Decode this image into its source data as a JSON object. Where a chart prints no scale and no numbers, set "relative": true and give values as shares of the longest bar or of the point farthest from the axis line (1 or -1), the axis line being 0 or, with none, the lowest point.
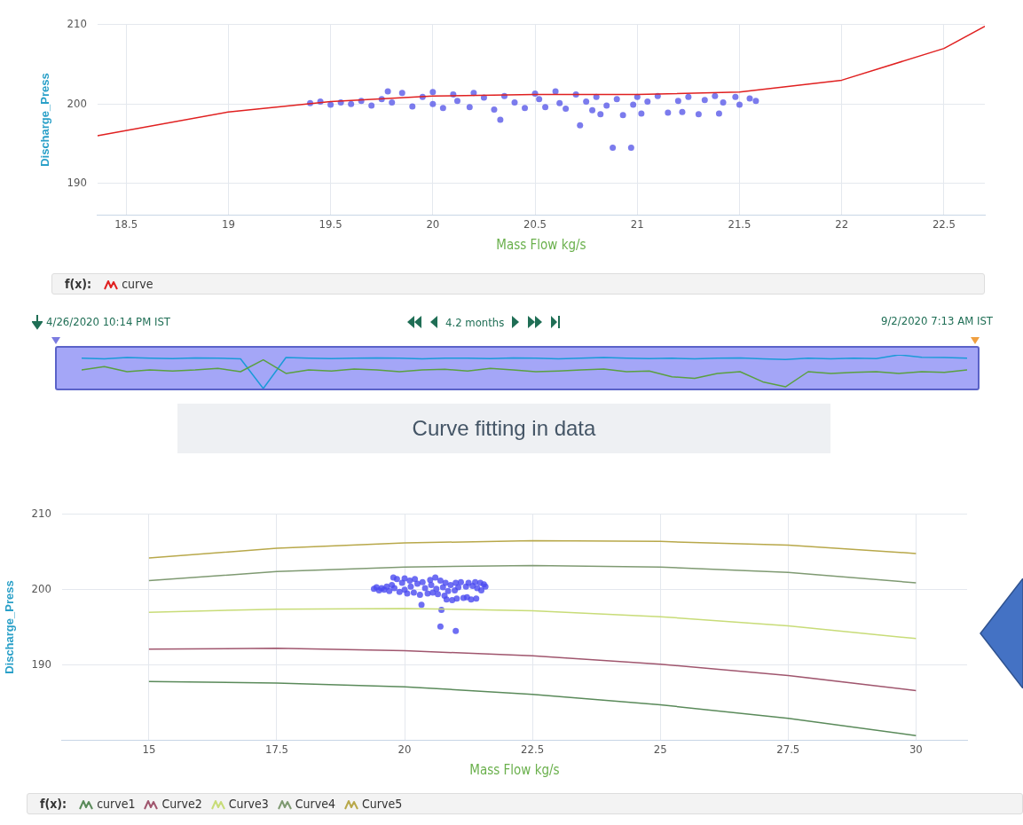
{
  "chart_data": [
    {
      "type": "scatter",
      "xlabel": "Mass Flow kg/s",
      "ylabel": "Discharge_Press",
      "xlim": [
        18.36,
        22.7
      ],
      "ylim": [
        186,
        210
      ],
      "xticks": [
        18.5,
        19,
        19.5,
        20,
        20.5,
        21,
        21.5,
        22,
        22.5
      ],
      "yticks": [
        190,
        200,
        210
      ],
      "grid": true,
      "legend": "bottom",
      "legend_title": "f(x):",
      "series": [
        {
          "type": "scatter",
          "color": "#5a5ae8",
          "marker": "circle",
          "x": [
            19.4,
            19.45,
            19.5,
            19.55,
            19.6,
            19.65,
            19.7,
            19.75,
            19.78,
            19.8,
            19.85,
            19.9,
            19.95,
            20.0,
            20.0,
            20.05,
            20.1,
            20.12,
            20.18,
            20.2,
            20.25,
            20.3,
            20.33,
            20.35,
            20.4,
            20.45,
            20.5,
            20.52,
            20.55,
            20.6,
            20.62,
            20.65,
            20.7,
            20.72,
            20.75,
            20.78,
            20.8,
            20.82,
            20.85,
            20.88,
            20.9,
            20.93,
            20.97,
            20.98,
            21.0,
            21.02,
            21.05,
            21.1,
            21.15,
            21.2,
            21.22,
            21.25,
            21.3,
            21.33,
            21.38,
            21.4,
            21.42,
            21.48,
            21.5,
            21.55,
            21.58
          ],
          "values": [
            200.1,
            200.3,
            199.9,
            200.2,
            200.0,
            200.4,
            199.8,
            200.6,
            201.6,
            200.2,
            201.4,
            199.7,
            200.9,
            201.5,
            200.0,
            199.5,
            201.2,
            200.4,
            199.6,
            201.4,
            200.8,
            199.3,
            198.0,
            201.0,
            200.2,
            199.5,
            201.3,
            200.6,
            199.6,
            201.6,
            200.1,
            199.4,
            201.2,
            197.3,
            200.3,
            199.2,
            200.9,
            198.7,
            199.8,
            194.5,
            200.6,
            198.6,
            194.5,
            199.9,
            200.9,
            198.8,
            200.3,
            201.0,
            198.9,
            200.4,
            199.0,
            200.9,
            198.7,
            200.5,
            201.0,
            198.8,
            200.2,
            200.9,
            199.9,
            200.7,
            200.4
          ]
        },
        {
          "type": "line",
          "name": "curve",
          "color": "#e02020",
          "marker": "none",
          "x": [
            18.36,
            19,
            19.5,
            20,
            20.5,
            21,
            21.5,
            22,
            22.5,
            22.7
          ],
          "values": [
            196,
            199,
            200.3,
            201,
            201.2,
            201.2,
            201.5,
            203,
            207,
            209.8
          ]
        }
      ]
    },
    {
      "type": "line",
      "relative": true,
      "legend": false,
      "categories": [
        null,
        null,
        null,
        null,
        null,
        null,
        null,
        null,
        null,
        null,
        null,
        null,
        null,
        null,
        null,
        null,
        null,
        null,
        null,
        null,
        null,
        null,
        null,
        null,
        null,
        null,
        null,
        null,
        null,
        null,
        null,
        null,
        null,
        null,
        null,
        null,
        null,
        null,
        null,
        null
      ],
      "annotations": [
        "4/26/2020 10:14 PM IST",
        "4.2 months",
        "9/2/2020 7:13 AM IST"
      ],
      "series": [
        {
          "color": "#1a9ad8",
          "values": [
            0.9,
            0.88,
            0.92,
            0.9,
            0.89,
            0.91,
            0.9,
            0.88,
            0.0,
            0.92,
            0.9,
            0.89,
            0.9,
            0.91,
            0.9,
            0.88,
            0.9,
            0.9,
            0.89,
            0.91,
            0.9,
            0.88,
            0.9,
            0.92,
            0.9,
            0.89,
            0.9,
            0.88,
            0.9,
            0.91,
            0.88,
            0.86,
            0.9,
            0.88,
            0.9,
            0.89,
            1.0,
            0.93,
            0.92,
            0.9
          ]
        },
        {
          "color": "#5aa040",
          "values": [
            0.55,
            0.65,
            0.5,
            0.55,
            0.52,
            0.55,
            0.6,
            0.5,
            0.85,
            0.45,
            0.55,
            0.52,
            0.58,
            0.55,
            0.5,
            0.55,
            0.57,
            0.52,
            0.6,
            0.55,
            0.5,
            0.52,
            0.55,
            0.58,
            0.5,
            0.52,
            0.35,
            0.3,
            0.45,
            0.5,
            0.2,
            0.05,
            0.5,
            0.45,
            0.48,
            0.5,
            0.45,
            0.5,
            0.48,
            0.55
          ]
        }
      ]
    },
    {
      "type": "scatter",
      "title": "Curve fitting in data",
      "xlabel": "Mass Flow kg/s",
      "ylabel": "Discharge_Press",
      "xlim": [
        13.3,
        31
      ],
      "ylim": [
        180,
        210
      ],
      "xticks": [
        15,
        17.5,
        20,
        22.5,
        25,
        27.5,
        30
      ],
      "yticks": [
        190,
        200,
        210
      ],
      "grid": true,
      "legend": "bottom",
      "legend_title": "f(x):",
      "series": [
        {
          "type": "scatter",
          "color": "#4a4af0",
          "marker": "circle",
          "x": [
            19.4,
            19.45,
            19.5,
            19.55,
            19.6,
            19.65,
            19.7,
            19.75,
            19.78,
            19.8,
            19.85,
            19.9,
            19.95,
            20.0,
            20.0,
            20.05,
            20.1,
            20.12,
            20.18,
            20.2,
            20.25,
            20.3,
            20.33,
            20.35,
            20.4,
            20.45,
            20.5,
            20.52,
            20.55,
            20.6,
            20.62,
            20.65,
            20.7,
            20.72,
            20.75,
            20.78,
            20.8,
            20.82,
            20.85,
            20.7,
            20.9,
            20.93,
            21.0,
            20.98,
            21.0,
            21.02,
            21.05,
            21.1,
            21.15,
            21.2,
            21.22,
            21.25,
            21.3,
            21.33,
            21.38,
            21.4,
            21.42,
            21.48,
            21.5,
            21.55,
            21.58
          ],
          "values": [
            200.1,
            200.3,
            199.9,
            200.2,
            200.0,
            200.4,
            199.8,
            200.6,
            201.6,
            200.2,
            201.4,
            199.7,
            200.9,
            201.5,
            200.0,
            199.5,
            201.2,
            200.4,
            199.6,
            201.4,
            200.8,
            199.3,
            198.0,
            201.0,
            200.2,
            199.5,
            201.3,
            200.6,
            199.6,
            201.6,
            200.1,
            199.4,
            201.2,
            197.3,
            200.3,
            199.2,
            200.9,
            198.7,
            199.8,
            195.1,
            200.6,
            198.6,
            194.5,
            199.9,
            200.9,
            198.8,
            200.3,
            201.0,
            198.9,
            200.4,
            199.0,
            200.9,
            198.7,
            200.5,
            201.0,
            198.8,
            200.2,
            200.9,
            199.9,
            200.7,
            200.4
          ]
        },
        {
          "type": "line",
          "name": "curve1",
          "color": "#5a8a5a",
          "marker": "none",
          "x": [
            15,
            17.5,
            20,
            22.5,
            25,
            27.5,
            30
          ],
          "values": [
            187.8,
            187.6,
            187.1,
            186.1,
            184.7,
            182.9,
            180.6
          ]
        },
        {
          "type": "line",
          "name": "Curve2",
          "color": "#a0566e",
          "marker": "none",
          "x": [
            15,
            17.5,
            20,
            22.5,
            25,
            27.5,
            30
          ],
          "values": [
            192.1,
            192.2,
            191.9,
            191.2,
            190.1,
            188.6,
            186.6
          ]
        },
        {
          "type": "line",
          "name": "Curve3",
          "color": "#c8dc78",
          "marker": "none",
          "x": [
            15,
            17.5,
            20,
            22.5,
            25,
            27.5,
            30
          ],
          "values": [
            197,
            197.4,
            197.5,
            197.2,
            196.4,
            195.2,
            193.5
          ]
        },
        {
          "type": "line",
          "name": "Curve4",
          "color": "#7f9a72",
          "marker": "none",
          "x": [
            15,
            17.5,
            20,
            22.5,
            25,
            27.5,
            30
          ],
          "values": [
            201.2,
            202.4,
            203.0,
            203.2,
            203.0,
            202.3,
            200.9
          ]
        },
        {
          "type": "line",
          "name": "Curve5",
          "color": "#b8a84a",
          "marker": "none",
          "x": [
            15,
            17.5,
            20,
            22.5,
            25,
            27.5,
            30
          ],
          "values": [
            204.2,
            205.5,
            206.2,
            206.5,
            206.4,
            205.9,
            204.8
          ]
        }
      ]
    }
  ]
}
